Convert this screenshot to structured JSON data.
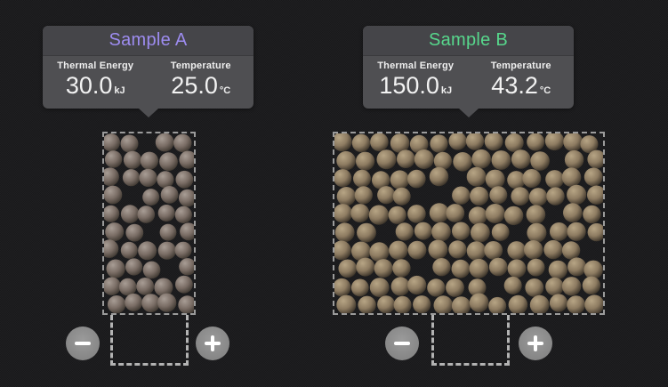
{
  "app": {
    "background": "#19191b"
  },
  "samples": [
    {
      "title": "Sample A",
      "title_color": "#9d8cf0",
      "stats": [
        {
          "label": "Thermal Energy",
          "value": "30.0",
          "unit": "kJ"
        },
        {
          "label": "Temperature",
          "value": "25.0",
          "unit": "°C"
        }
      ],
      "particles": {
        "cols": 5,
        "rows": 10,
        "diameter": 20,
        "seed": 11,
        "skip": [
          2,
          16,
          27,
          38
        ],
        "colors": {
          "highlight": "#a89d95",
          "base": "#7a6d65",
          "shadow": "#3f3831"
        }
      },
      "controls": {
        "minus_icon": "minus",
        "plus_icon": "plus"
      }
    },
    {
      "title": "Sample B",
      "title_color": "#57d78c",
      "stats": [
        {
          "label": "Thermal Energy",
          "value": "150.0",
          "unit": "kJ"
        },
        {
          "label": "Temperature",
          "value": "43.2",
          "unit": "°C"
        }
      ],
      "particles": {
        "cols": 14,
        "rows": 10,
        "diameter": 21,
        "seed": 4242,
        "skip": [
          25,
          34,
          46,
          47,
          67,
          72,
          79,
          97,
          102,
          120
        ],
        "colors": {
          "highlight": "#b7a585",
          "base": "#8d7b61",
          "shadow": "#3a3228"
        }
      },
      "controls": {
        "minus_icon": "minus",
        "plus_icon": "plus"
      }
    }
  ]
}
